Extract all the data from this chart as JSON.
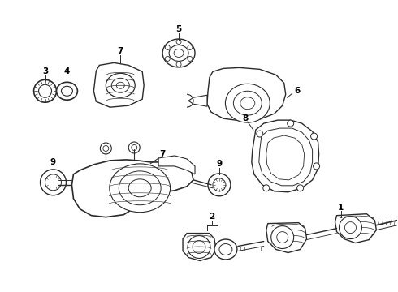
{
  "bg_color": "#ffffff",
  "line_color": "#2a2a2a",
  "label_color": "#000000",
  "fig_width": 4.9,
  "fig_height": 3.6,
  "dpi": 100,
  "font_size": 7.5
}
